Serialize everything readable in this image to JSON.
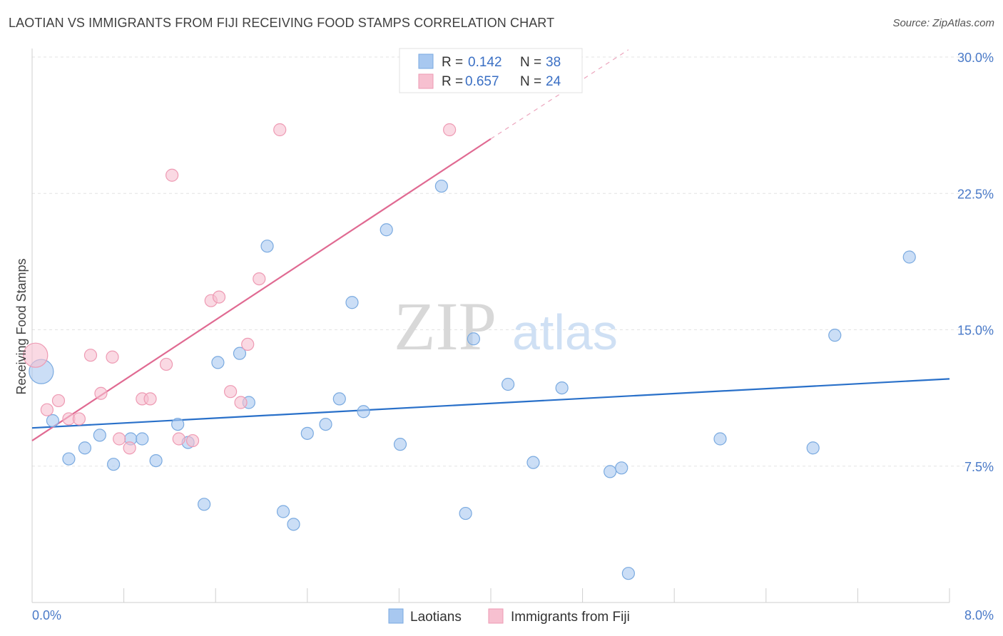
{
  "header": {
    "title": "LAOTIAN VS IMMIGRANTS FROM FIJI RECEIVING FOOD STAMPS CORRELATION CHART",
    "source": "Source: ZipAtlas.com"
  },
  "watermark": {
    "part1": "ZIP",
    "part2": "atlas"
  },
  "chart_data": {
    "type": "scatter",
    "title": "LAOTIAN VS IMMIGRANTS FROM FIJI RECEIVING FOOD STAMPS CORRELATION CHART",
    "ylabel": "Receiving Food Stamps",
    "xlabel": "",
    "xlim": [
      0,
      8
    ],
    "ylim": [
      0,
      30
    ],
    "x_tick_labels": [
      "0.0%",
      "8.0%"
    ],
    "y_tick_labels": [
      "7.5%",
      "15.0%",
      "22.5%",
      "30.0%"
    ],
    "y_ticks": [
      7.5,
      15.0,
      22.5,
      30.0
    ],
    "grid": true,
    "legend_position": "top-center",
    "series": [
      {
        "name": "Laotians",
        "color": "#a8c8f0",
        "stroke": "#7aaae0",
        "line_color": "#2970c9",
        "R": "0.142",
        "N": "38",
        "trend": {
          "x": [
            0,
            8
          ],
          "y": [
            9.6,
            12.3
          ]
        },
        "points": [
          {
            "x": 0.08,
            "y": 12.7,
            "big": true
          },
          {
            "x": 0.18,
            "y": 10.0
          },
          {
            "x": 0.32,
            "y": 7.9
          },
          {
            "x": 0.46,
            "y": 8.5
          },
          {
            "x": 0.59,
            "y": 9.2
          },
          {
            "x": 0.71,
            "y": 7.6
          },
          {
            "x": 0.86,
            "y": 9.0
          },
          {
            "x": 0.96,
            "y": 9.0
          },
          {
            "x": 1.08,
            "y": 7.8
          },
          {
            "x": 1.27,
            "y": 9.8
          },
          {
            "x": 1.36,
            "y": 8.8
          },
          {
            "x": 1.5,
            "y": 5.4
          },
          {
            "x": 1.62,
            "y": 13.2
          },
          {
            "x": 1.81,
            "y": 13.7
          },
          {
            "x": 1.89,
            "y": 11.0
          },
          {
            "x": 2.05,
            "y": 19.6
          },
          {
            "x": 2.19,
            "y": 5.0
          },
          {
            "x": 2.28,
            "y": 4.3
          },
          {
            "x": 2.4,
            "y": 9.3
          },
          {
            "x": 2.56,
            "y": 9.8
          },
          {
            "x": 2.68,
            "y": 11.2
          },
          {
            "x": 2.79,
            "y": 16.5
          },
          {
            "x": 2.89,
            "y": 10.5
          },
          {
            "x": 3.09,
            "y": 20.5
          },
          {
            "x": 3.21,
            "y": 8.7
          },
          {
            "x": 3.57,
            "y": 22.9
          },
          {
            "x": 3.78,
            "y": 4.9
          },
          {
            "x": 3.85,
            "y": 14.5
          },
          {
            "x": 4.15,
            "y": 12.0
          },
          {
            "x": 4.37,
            "y": 7.7
          },
          {
            "x": 4.62,
            "y": 11.8
          },
          {
            "x": 5.04,
            "y": 7.2
          },
          {
            "x": 5.14,
            "y": 7.4
          },
          {
            "x": 5.2,
            "y": 1.6
          },
          {
            "x": 6.0,
            "y": 9.0
          },
          {
            "x": 6.81,
            "y": 8.5
          },
          {
            "x": 7.0,
            "y": 14.7
          },
          {
            "x": 7.65,
            "y": 19.0
          }
        ]
      },
      {
        "name": "Immigrants from Fiji",
        "color": "#f7c0d0",
        "stroke": "#ee9ab3",
        "line_color": "#e06a92",
        "R": "0.657",
        "N": "24",
        "trend": {
          "x": [
            0,
            4.0
          ],
          "y": [
            8.9,
            25.5
          ],
          "dash_to": [
            5.2,
            30.4
          ]
        },
        "points": [
          {
            "x": 0.03,
            "y": 13.6,
            "big": true
          },
          {
            "x": 0.13,
            "y": 10.6
          },
          {
            "x": 0.23,
            "y": 11.1
          },
          {
            "x": 0.32,
            "y": 10.1
          },
          {
            "x": 0.41,
            "y": 10.1
          },
          {
            "x": 0.51,
            "y": 13.6
          },
          {
            "x": 0.6,
            "y": 11.5
          },
          {
            "x": 0.7,
            "y": 13.5
          },
          {
            "x": 0.76,
            "y": 9.0
          },
          {
            "x": 0.85,
            "y": 8.5
          },
          {
            "x": 0.96,
            "y": 11.2
          },
          {
            "x": 1.03,
            "y": 11.2
          },
          {
            "x": 1.17,
            "y": 13.1
          },
          {
            "x": 1.22,
            "y": 23.5
          },
          {
            "x": 1.28,
            "y": 9.0
          },
          {
            "x": 1.4,
            "y": 8.9
          },
          {
            "x": 1.56,
            "y": 16.6
          },
          {
            "x": 1.63,
            "y": 16.8
          },
          {
            "x": 1.73,
            "y": 11.6
          },
          {
            "x": 1.82,
            "y": 11.0
          },
          {
            "x": 1.88,
            "y": 14.2
          },
          {
            "x": 1.98,
            "y": 17.8
          },
          {
            "x": 2.16,
            "y": 26.0
          },
          {
            "x": 3.64,
            "y": 26.0
          }
        ]
      }
    ]
  }
}
